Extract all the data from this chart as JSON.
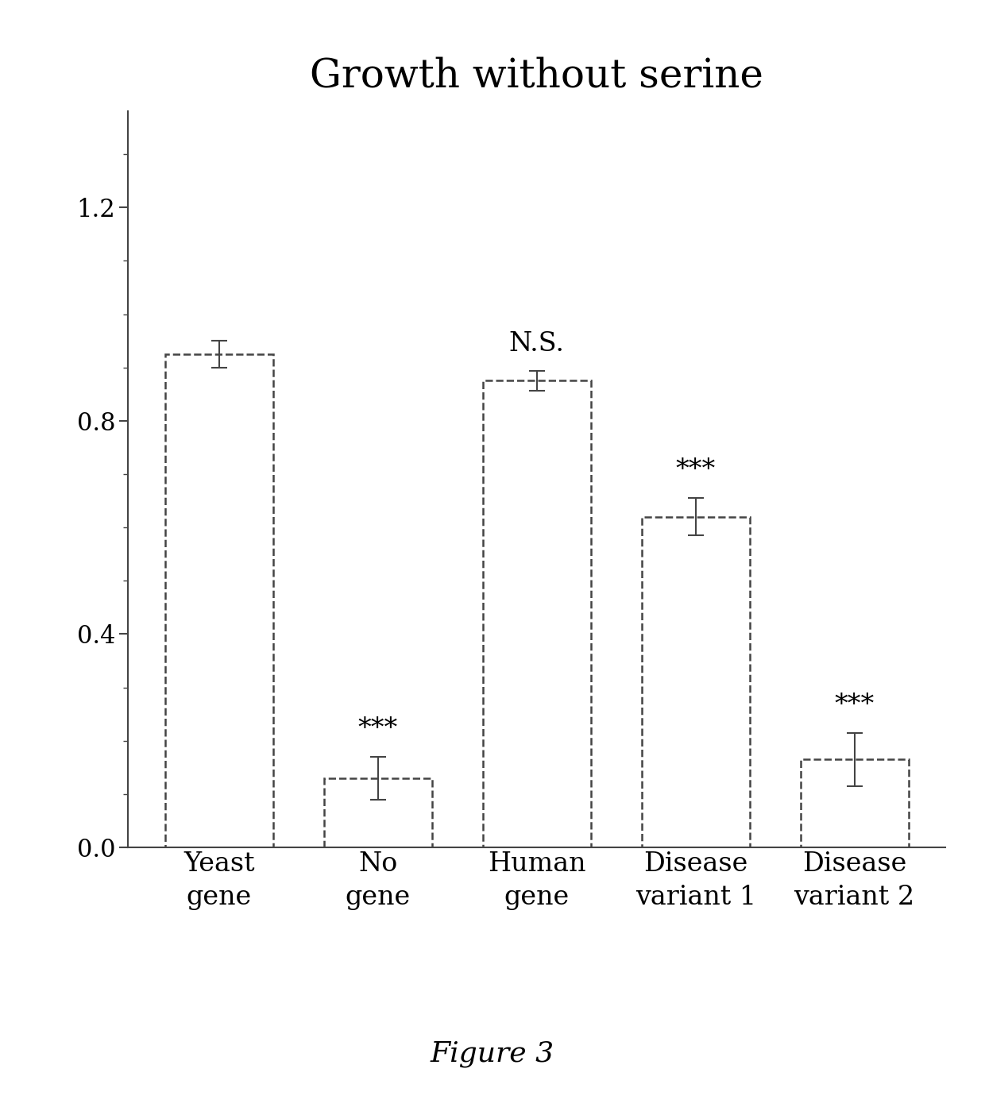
{
  "title": "Growth without serine",
  "figure_label": "Figure 3",
  "categories": [
    "Yeast\ngene",
    "No\ngene",
    "Human\ngene",
    "Disease\nvariant 1",
    "Disease\nvariant 2"
  ],
  "values": [
    0.925,
    0.13,
    0.875,
    0.62,
    0.165
  ],
  "errors": [
    0.025,
    0.04,
    0.018,
    0.035,
    0.05
  ],
  "annotations": [
    "",
    "***",
    "N.S.",
    "***",
    "***"
  ],
  "ylim": [
    0.0,
    1.38
  ],
  "yticks": [
    0.0,
    0.4,
    0.8,
    1.2
  ],
  "ytick_labels": [
    "0.0",
    "0.4",
    "0.8",
    "1.2"
  ],
  "bar_color": "#ffffff",
  "bar_edge_color": "#444444",
  "bar_linewidth": 1.8,
  "bar_linestyle": "dashed",
  "error_color": "#444444",
  "error_linewidth": 1.5,
  "error_capsize": 7,
  "annotation_fontsize": 24,
  "tick_fontsize": 22,
  "title_fontsize": 36,
  "xlabel_fontsize": 24,
  "figure_label_fontsize": 26,
  "background_color": "#ffffff",
  "bar_width": 0.68,
  "spine_linewidth": 1.5,
  "spine_color": "#444444"
}
